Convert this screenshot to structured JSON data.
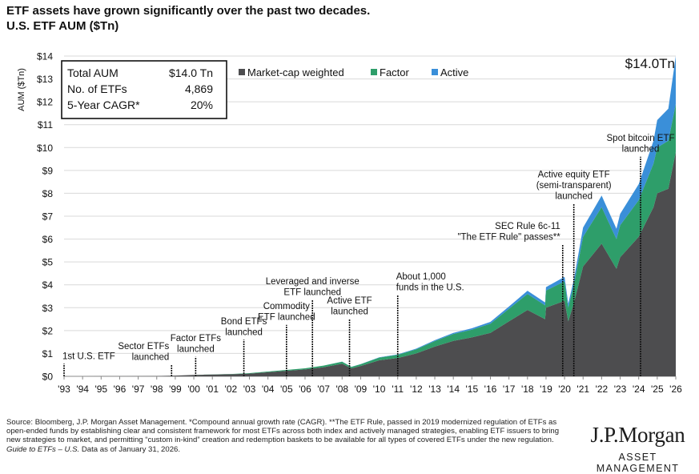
{
  "header": {
    "title": "ETF assets have grown significantly over the past two decades.",
    "subtitle": "U.S. ETF AUM ($Tn)"
  },
  "stats_box": {
    "rows": [
      {
        "label": "Total AUM",
        "value": "$14.0 Tn"
      },
      {
        "label": "No. of ETFs",
        "value": "4,869"
      },
      {
        "label": "5-Year CAGR*",
        "value": "20%"
      }
    ]
  },
  "chart_data": {
    "type": "area",
    "stacked": true,
    "ylabel": "AUM ($Tn)",
    "ylim": [
      0,
      14
    ],
    "yticks": [
      "$0",
      "$1",
      "$2",
      "$3",
      "$4",
      "$5",
      "$6",
      "$7",
      "$8",
      "$9",
      "$10",
      "$11",
      "$12",
      "$13",
      "$14"
    ],
    "xlim": [
      1993,
      2026
    ],
    "xticks": [
      "'93",
      "'94",
      "'95",
      "'96",
      "'97",
      "'98",
      "'99",
      "'00",
      "'01",
      "'02",
      "'03",
      "'04",
      "'05",
      "'06",
      "'07",
      "'08",
      "'09",
      "'10",
      "'11",
      "'12",
      "'13",
      "'14",
      "'15",
      "'16",
      "'17",
      "'18",
      "'19",
      "'20",
      "'21",
      "'22",
      "'23",
      "'24",
      "'25",
      "'26"
    ],
    "grid": true,
    "legend_position": "top",
    "end_label": "$14.0Tn",
    "x": [
      1993,
      1994,
      1995,
      1996,
      1997,
      1998,
      1999,
      2000,
      2001,
      2002,
      2003,
      2004,
      2005,
      2006,
      2007,
      2008,
      2008.5,
      2009,
      2010,
      2011,
      2012,
      2013,
      2014,
      2015,
      2016,
      2017,
      2018,
      2018.95,
      2019,
      2020,
      2020.2,
      2020.5,
      2021,
      2022,
      2022.8,
      2023,
      2024,
      2024.8,
      2025,
      2025.6,
      2026
    ],
    "series": [
      {
        "name": "Market-cap weighted",
        "color": "#4d4d4f",
        "values": [
          0,
          0.001,
          0.002,
          0.002,
          0.006,
          0.015,
          0.03,
          0.06,
          0.08,
          0.09,
          0.12,
          0.18,
          0.24,
          0.3,
          0.4,
          0.55,
          0.35,
          0.45,
          0.7,
          0.8,
          1.0,
          1.3,
          1.55,
          1.7,
          1.9,
          2.4,
          2.9,
          2.5,
          3.0,
          3.3,
          2.4,
          3.2,
          4.8,
          5.8,
          4.7,
          5.2,
          6.1,
          7.4,
          8.0,
          8.2,
          9.8
        ]
      },
      {
        "name": "Factor",
        "color": "#2e9e6a",
        "values": [
          0,
          0,
          0,
          0,
          0,
          0,
          0,
          0.002,
          0.005,
          0.01,
          0.02,
          0.03,
          0.04,
          0.05,
          0.07,
          0.09,
          0.06,
          0.08,
          0.12,
          0.14,
          0.18,
          0.24,
          0.3,
          0.34,
          0.4,
          0.55,
          0.7,
          0.6,
          0.75,
          0.85,
          0.6,
          0.8,
          1.3,
          1.6,
          1.3,
          1.4,
          1.6,
          1.9,
          2.0,
          2.1,
          2.1
        ]
      },
      {
        "name": "Active",
        "color": "#3a8fd9",
        "values": [
          0,
          0,
          0,
          0,
          0,
          0,
          0,
          0,
          0,
          0,
          0,
          0,
          0,
          0,
          0,
          0.005,
          0.005,
          0.007,
          0.012,
          0.02,
          0.03,
          0.04,
          0.05,
          0.06,
          0.08,
          0.1,
          0.14,
          0.13,
          0.15,
          0.2,
          0.18,
          0.22,
          0.4,
          0.5,
          0.45,
          0.5,
          0.7,
          1.0,
          1.2,
          1.4,
          2.1
        ]
      }
    ],
    "annotations": [
      {
        "x": 1993.0,
        "y": 0.55,
        "lines": [
          "1st U.S. ETF"
        ],
        "align": "start"
      },
      {
        "x": 1998.8,
        "y": 0.5,
        "lines": [
          "Sector ETFs",
          "launched"
        ],
        "align": "end"
      },
      {
        "x": 2000.1,
        "y": 0.85,
        "lines": [
          "Factor ETFs",
          "launched"
        ],
        "align": "middle"
      },
      {
        "x": 2002.7,
        "y": 1.6,
        "lines": [
          "Bond ETFs",
          "launched"
        ],
        "align": "middle"
      },
      {
        "x": 2005.0,
        "y": 2.25,
        "lines": [
          "Commodity",
          "ETF launched"
        ],
        "align": "middle"
      },
      {
        "x": 2006.4,
        "y": 3.35,
        "lines": [
          "Leveraged and inverse",
          "ETF launched"
        ],
        "align": "middle"
      },
      {
        "x": 2008.4,
        "y": 2.5,
        "lines": [
          "Active ETF",
          "launched"
        ],
        "align": "middle"
      },
      {
        "x": 2011.0,
        "y": 3.55,
        "lines": [
          "About 1,000",
          "funds in the U.S."
        ],
        "align": "start"
      },
      {
        "x": 2019.9,
        "y": 5.75,
        "lines": [
          "SEC Rule 6c-11",
          "\"The ETF Rule\" passes**"
        ],
        "align": "end"
      },
      {
        "x": 2020.5,
        "y": 7.55,
        "lines": [
          "Active equity ETF",
          "(semi-transparent)",
          "launched"
        ],
        "align": "middle"
      },
      {
        "x": 2024.1,
        "y": 9.6,
        "lines": [
          "Spot bitcoin ETF",
          "launched"
        ],
        "align": "middle"
      }
    ]
  },
  "footer": {
    "source": "Source: Bloomberg, J.P. Morgan Asset Management. *Compound annual growth rate (CAGR). **The ETF Rule, passed in 2019 modernized regulation of ETFs as open-ended funds by establishing clear and consistent framework for most ETFs across both index and actively managed strategies, enabling ETF issuers to bring new strategies to market, and permitting “custom in-kind” creation and redemption baskets to be available for all types of covered ETFs under the new regulation.",
    "guide": "Guide to ETFs – U.S.",
    "as_of": " Data as of January 31, 2026."
  },
  "brand": {
    "wordmark": "J.P.Morgan",
    "tagline": "ASSET MANAGEMENT"
  }
}
